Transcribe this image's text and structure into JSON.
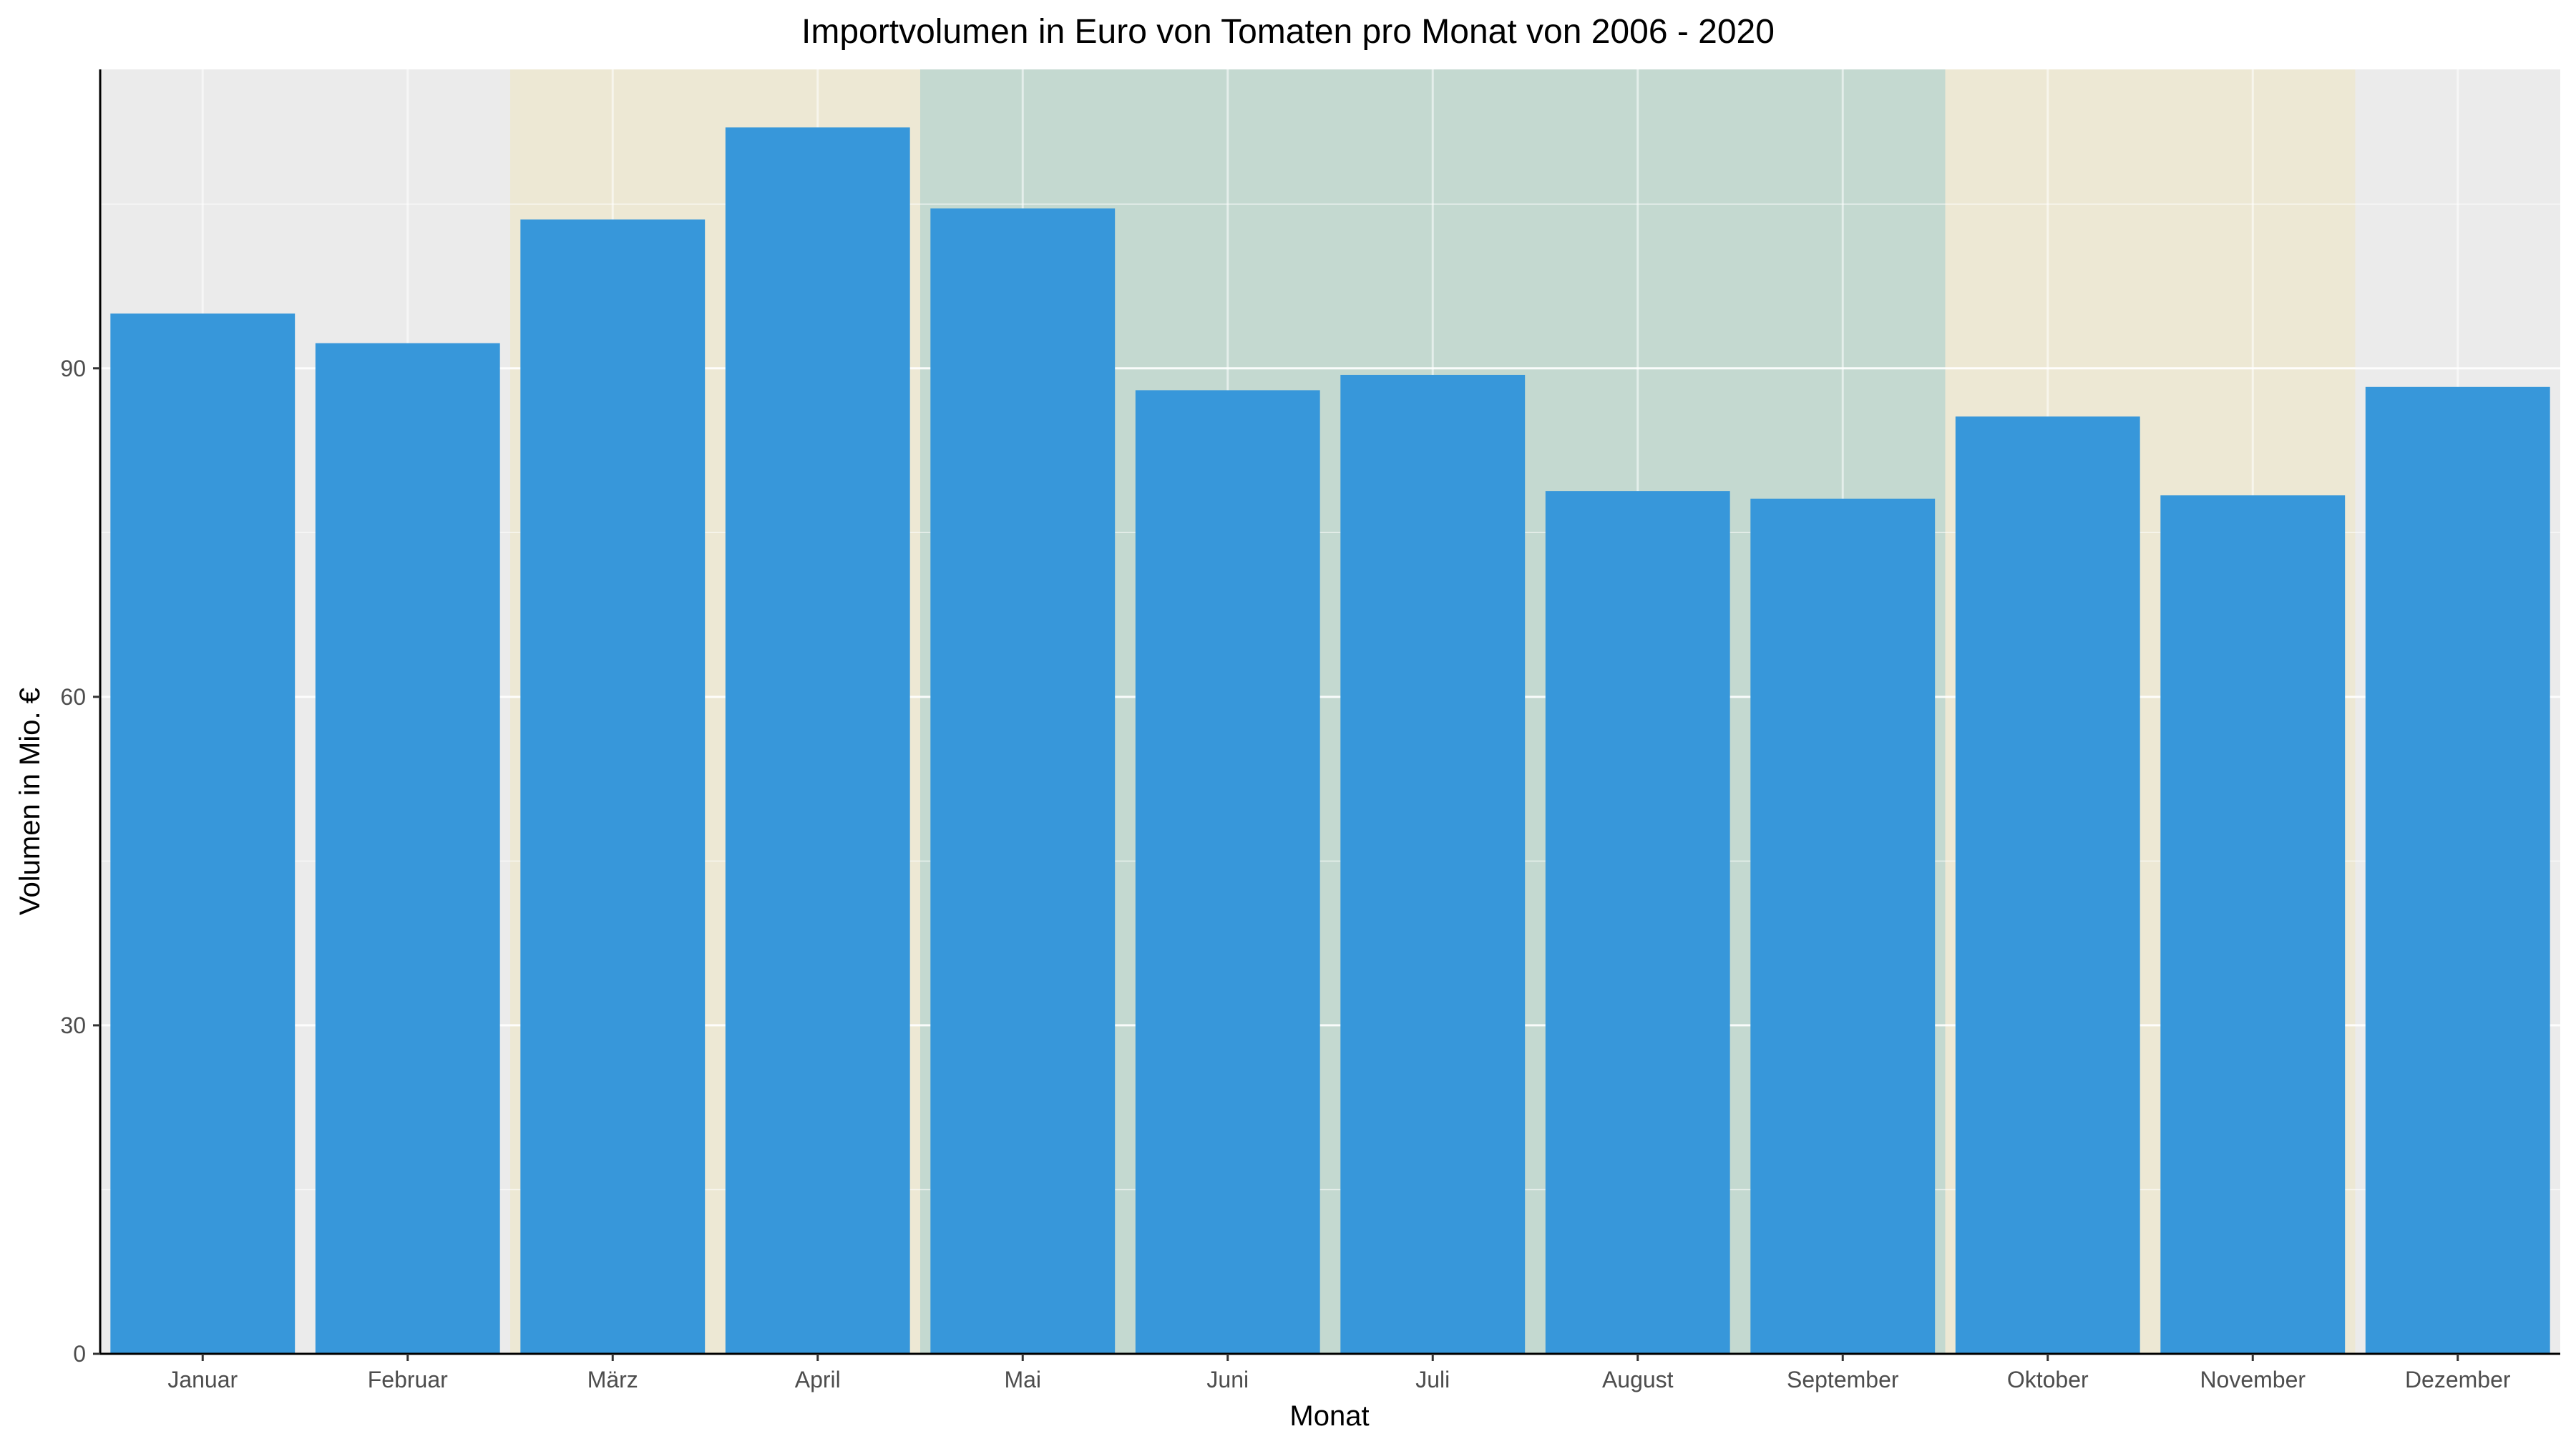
{
  "chart_data": {
    "type": "bar",
    "title": "Importvolumen in Euro von Tomaten pro Monat von 2006 - 2020",
    "xlabel": "Monat",
    "ylabel": "Volumen in Mio. €",
    "categories": [
      "Januar",
      "Februar",
      "März",
      "April",
      "Mai",
      "Juni",
      "Juli",
      "August",
      "September",
      "Oktober",
      "November",
      "Dezember"
    ],
    "values": [
      95,
      92.3,
      103.6,
      112,
      104.6,
      88,
      89.4,
      78.8,
      78.1,
      85.6,
      78.4,
      88.3
    ],
    "ylim": [
      0,
      117.3
    ],
    "yticks": [
      0,
      30,
      60,
      90
    ],
    "grid": true,
    "bar_color": "#3797da",
    "panel_background": "#ebebeb",
    "season_bands": [
      {
        "from": "März",
        "to": "April",
        "color": "#ede8d4"
      },
      {
        "from": "Mai",
        "to": "September",
        "color": "#c4d9d0"
      },
      {
        "from": "Oktober",
        "to": "November",
        "color": "#ede8d4"
      }
    ]
  }
}
